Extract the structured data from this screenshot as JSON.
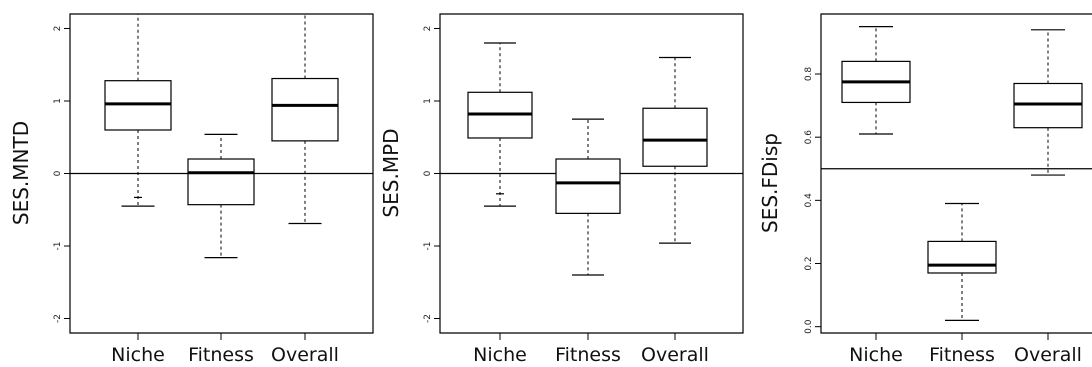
{
  "chart_data": [
    {
      "type": "box",
      "ylabel": "SES.MNTD",
      "xlabel": "",
      "categories": [
        "Niche",
        "Fitness",
        "Overall"
      ],
      "ylim": [
        -2.2,
        2.2
      ],
      "yticks": [
        -2,
        -1,
        0,
        1,
        2
      ],
      "reference_line": 0,
      "boxes": [
        {
          "min": -0.45,
          "q1": 0.6,
          "median": 0.96,
          "q3": 1.28,
          "max": 2.2,
          "outliers": [
            -0.33
          ]
        },
        {
          "min": -1.16,
          "q1": -0.43,
          "median": 0.01,
          "q3": 0.2,
          "max": 0.54,
          "outliers": []
        },
        {
          "min": -0.69,
          "q1": 0.45,
          "median": 0.94,
          "q3": 1.31,
          "max": 2.2,
          "outliers": []
        }
      ]
    },
    {
      "type": "box",
      "ylabel": "SES.MPD",
      "xlabel": "",
      "categories": [
        "Niche",
        "Fitness",
        "Overall"
      ],
      "ylim": [
        -2.2,
        2.2
      ],
      "yticks": [
        -2,
        -1,
        0,
        1,
        2
      ],
      "reference_line": 0,
      "boxes": [
        {
          "min": -0.45,
          "q1": 0.49,
          "median": 0.82,
          "q3": 1.12,
          "max": 1.8,
          "outliers": [
            -0.28
          ]
        },
        {
          "min": -1.4,
          "q1": -0.55,
          "median": -0.13,
          "q3": 0.2,
          "max": 0.75,
          "outliers": []
        },
        {
          "min": -0.96,
          "q1": 0.1,
          "median": 0.46,
          "q3": 0.9,
          "max": 1.6,
          "outliers": []
        }
      ]
    },
    {
      "type": "box",
      "ylabel": "SES.FDisp",
      "xlabel": "",
      "categories": [
        "Niche",
        "Fitness",
        "Overall"
      ],
      "ylim": [
        -0.02,
        0.99
      ],
      "yticks": [
        0.0,
        0.2,
        0.4,
        0.6,
        0.8
      ],
      "ytick_labels": [
        "0.0",
        "0.2",
        "0.4",
        "0.6",
        "0.8"
      ],
      "reference_line": 0.5,
      "boxes": [
        {
          "min": 0.61,
          "q1": 0.71,
          "median": 0.775,
          "q3": 0.84,
          "max": 0.95,
          "outliers": []
        },
        {
          "min": 0.02,
          "q1": 0.17,
          "median": 0.195,
          "q3": 0.27,
          "max": 0.39,
          "outliers": []
        },
        {
          "min": 0.48,
          "q1": 0.63,
          "median": 0.705,
          "q3": 0.77,
          "max": 0.94,
          "outliers": []
        }
      ]
    }
  ]
}
